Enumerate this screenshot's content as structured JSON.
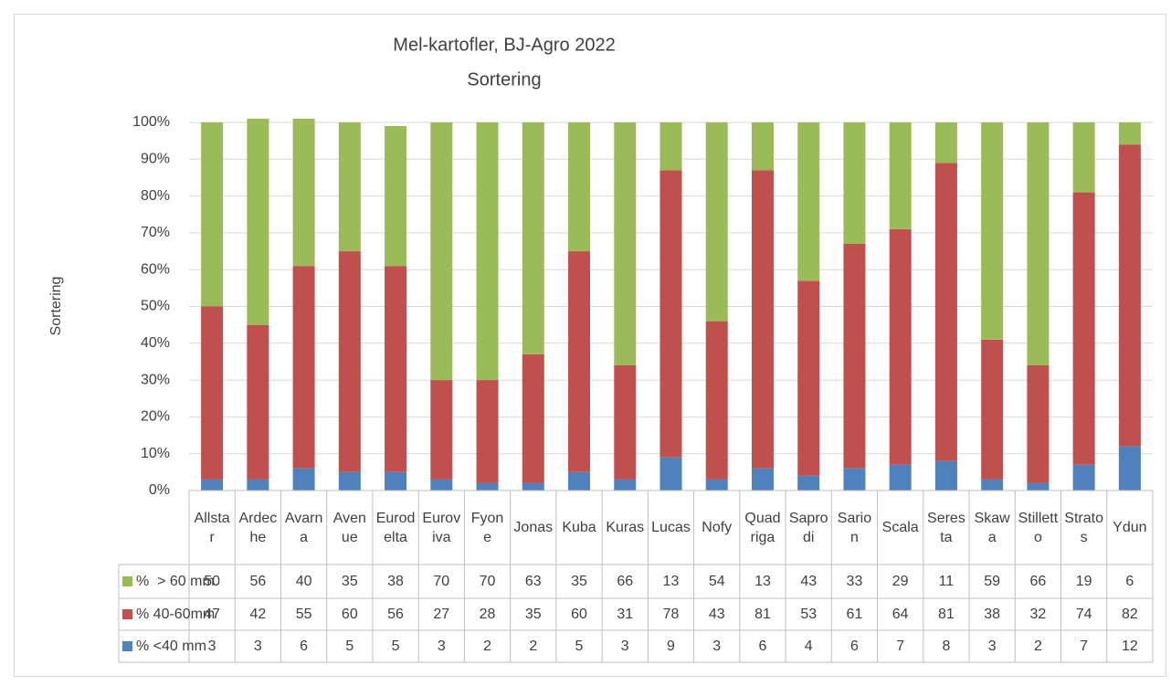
{
  "chart_data": {
    "type": "bar",
    "title": "Mel-kartofler, BJ-Agro 2022",
    "subtitle": "Sortering",
    "y_label": "Sortering",
    "categories": [
      "Allstar",
      "Ardeche",
      "Avarna",
      "Avenue",
      "Eurodelta",
      "Euroviva",
      "Fyone",
      "Jonas",
      "Kuba",
      "Kuras",
      "Lucas",
      "Nofy",
      "Quadriga",
      "Saprodi",
      "Sarion",
      "Scala",
      "Seresta",
      "Skawa",
      "Stilletto",
      "Stratos",
      "Ydun"
    ],
    "series": [
      {
        "name": "% <40 mm",
        "color": "#4f81bd",
        "values": [
          3,
          3,
          6,
          5,
          5,
          3,
          2,
          2,
          5,
          3,
          9,
          3,
          6,
          4,
          6,
          7,
          8,
          3,
          2,
          7,
          12
        ]
      },
      {
        "name": "% 40-60mm",
        "color": "#c0504d",
        "values": [
          47,
          42,
          55,
          60,
          56,
          27,
          28,
          35,
          60,
          31,
          78,
          43,
          81,
          53,
          61,
          64,
          81,
          38,
          32,
          74,
          82
        ]
      },
      {
        "name": "%  > 60 mm",
        "color": "#9bbb59",
        "values": [
          50,
          56,
          40,
          35,
          38,
          70,
          70,
          63,
          35,
          66,
          13,
          54,
          13,
          43,
          33,
          29,
          11,
          59,
          66,
          19,
          6
        ]
      }
    ],
    "ylim": [
      0,
      100
    ],
    "yticks": [
      {
        "value": 0,
        "label": "0%"
      },
      {
        "value": 10,
        "label": "10%"
      },
      {
        "value": 20,
        "label": "20%"
      },
      {
        "value": 30,
        "label": "30%"
      },
      {
        "value": 40,
        "label": "40%"
      },
      {
        "value": 50,
        "label": "50%"
      },
      {
        "value": 60,
        "label": "60%"
      },
      {
        "value": 70,
        "label": "70%"
      },
      {
        "value": 80,
        "label": "80%"
      },
      {
        "value": 90,
        "label": "90%"
      },
      {
        "value": 100,
        "label": "100%"
      }
    ],
    "grid": true,
    "stacked": true,
    "data_table": true
  }
}
